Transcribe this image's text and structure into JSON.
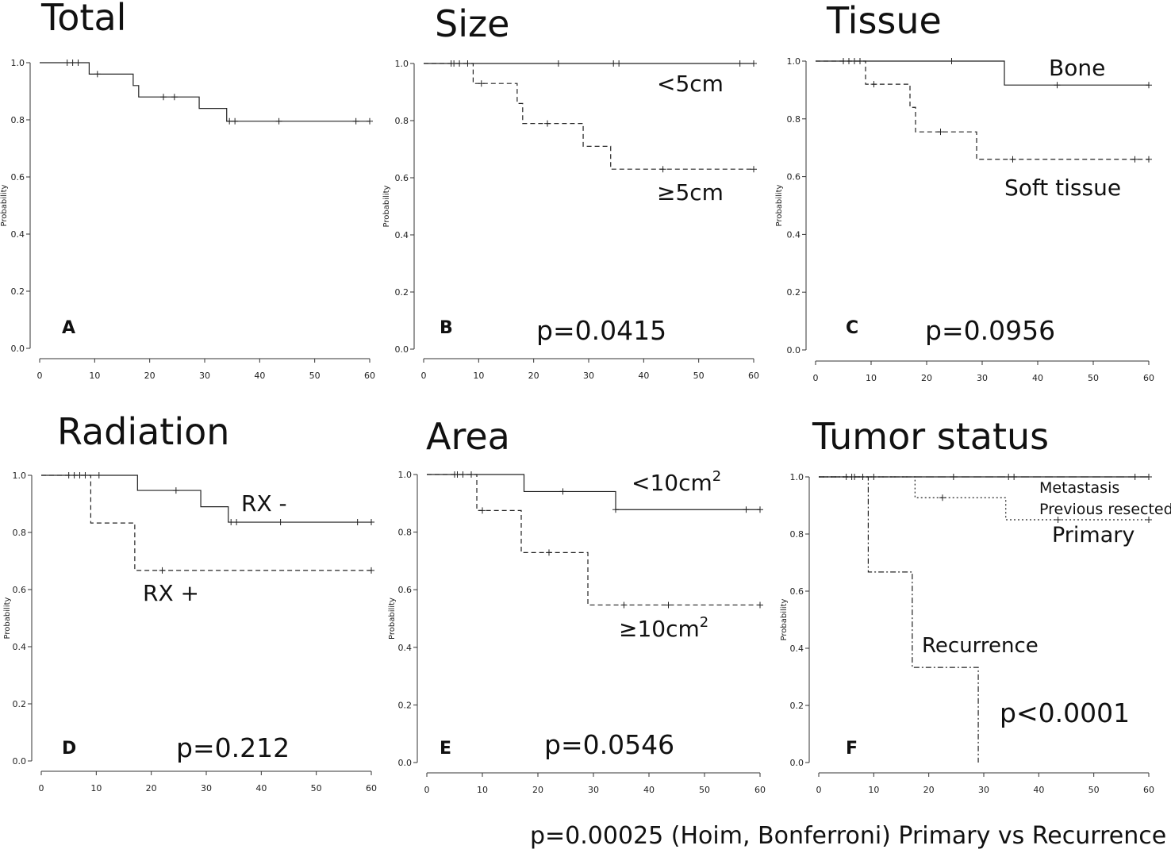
{
  "footnote": "p=0.00025 (Hoim, Bonferroni) Primary vs Recurrence",
  "chart_data": [
    {
      "type": "line",
      "subtype": "kaplan-meier",
      "title": "Total",
      "panel_letter": "A",
      "ylabel": "Probability",
      "xlim": [
        0,
        60
      ],
      "ylim": [
        0,
        1
      ],
      "xticks": [
        "0",
        "10",
        "20",
        "30",
        "40",
        "50",
        "60"
      ],
      "yticks": [
        "0.0",
        "0.2",
        "0.4",
        "0.6",
        "0.8",
        "1.0"
      ],
      "pvalue": "",
      "series": [
        {
          "name": "",
          "dash": "solid",
          "steps": [
            [
              0,
              1.0
            ],
            [
              9,
              0.96
            ],
            [
              17,
              0.92
            ],
            [
              18,
              0.88
            ],
            [
              29,
              0.84
            ],
            [
              34,
              0.795
            ],
            [
              60,
              0.795
            ]
          ],
          "censors": [
            [
              5,
              1.0
            ],
            [
              6,
              1.0
            ],
            [
              7,
              1.0
            ],
            [
              10.5,
              0.96
            ],
            [
              22.5,
              0.88
            ],
            [
              24.5,
              0.88
            ],
            [
              34.5,
              0.795
            ],
            [
              35.5,
              0.795
            ],
            [
              43.5,
              0.795
            ],
            [
              57.5,
              0.795
            ],
            [
              60,
              0.795
            ]
          ]
        }
      ]
    },
    {
      "type": "line",
      "subtype": "kaplan-meier",
      "title": "Size",
      "panel_letter": "B",
      "ylabel": "Probability",
      "xlim": [
        0,
        60
      ],
      "ylim": [
        0,
        1
      ],
      "xticks": [
        "0",
        "10",
        "20",
        "30",
        "40",
        "50",
        "60"
      ],
      "yticks": [
        "0.0",
        "0.2",
        "0.4",
        "0.6",
        "0.8",
        "1.0"
      ],
      "pvalue": "p=0.0415",
      "series": [
        {
          "name": "<5cm",
          "dash": "solid",
          "steps": [
            [
              0,
              1.0
            ],
            [
              60,
              1.0
            ]
          ],
          "censors": [
            [
              5,
              1.0
            ],
            [
              5.5,
              1.0
            ],
            [
              6.5,
              1.0
            ],
            [
              8,
              1.0
            ],
            [
              24.5,
              1.0
            ],
            [
              34.5,
              1.0
            ],
            [
              35.5,
              1.0
            ],
            [
              57.5,
              1.0
            ],
            [
              60,
              1.0
            ]
          ]
        },
        {
          "name": "≥5cm",
          "dash": "dashed",
          "steps": [
            [
              0,
              1.0
            ],
            [
              9,
              0.93
            ],
            [
              17,
              0.86
            ],
            [
              18,
              0.79
            ],
            [
              29,
              0.71
            ],
            [
              34,
              0.63
            ],
            [
              60,
              0.63
            ]
          ],
          "censors": [
            [
              10.5,
              0.93
            ],
            [
              22.5,
              0.79
            ],
            [
              43.5,
              0.63
            ],
            [
              60,
              0.63
            ]
          ]
        }
      ]
    },
    {
      "type": "line",
      "subtype": "kaplan-meier",
      "title": "Tissue",
      "panel_letter": "C",
      "ylabel": "Probability",
      "xlim": [
        0,
        60
      ],
      "ylim": [
        0,
        1
      ],
      "xticks": [
        "0",
        "10",
        "20",
        "30",
        "40",
        "50",
        "60"
      ],
      "yticks": [
        "0.0",
        "0.2",
        "0.4",
        "0.6",
        "0.8",
        "1.0"
      ],
      "pvalue": "p=0.0956",
      "series": [
        {
          "name": "Bone",
          "dash": "solid",
          "steps": [
            [
              0,
              1.0
            ],
            [
              34,
              0.917
            ],
            [
              60,
              0.917
            ]
          ],
          "censors": [
            [
              5,
              1.0
            ],
            [
              6,
              1.0
            ],
            [
              7,
              1.0
            ],
            [
              8,
              1.0
            ],
            [
              24.5,
              1.0
            ],
            [
              43.5,
              0.917
            ],
            [
              60,
              0.917
            ]
          ]
        },
        {
          "name": "Soft tissue",
          "dash": "dashed",
          "steps": [
            [
              0,
              1.0
            ],
            [
              9,
              0.92
            ],
            [
              17,
              0.84
            ],
            [
              18,
              0.755
            ],
            [
              29,
              0.66
            ],
            [
              60,
              0.66
            ]
          ],
          "censors": [
            [
              10.5,
              0.92
            ],
            [
              22.5,
              0.755
            ],
            [
              35.5,
              0.66
            ],
            [
              57.5,
              0.66
            ],
            [
              60,
              0.66
            ]
          ]
        }
      ]
    },
    {
      "type": "line",
      "subtype": "kaplan-meier",
      "title": "Radiation",
      "panel_letter": "D",
      "ylabel": "Probability",
      "xlim": [
        0,
        60
      ],
      "ylim": [
        0,
        1
      ],
      "xticks": [
        "0",
        "10",
        "20",
        "30",
        "40",
        "50",
        "60"
      ],
      "yticks": [
        "0.0",
        "0.2",
        "0.4",
        "0.6",
        "0.8",
        "1.0"
      ],
      "pvalue": "p=0.212",
      "series": [
        {
          "name": "RX -",
          "dash": "solid",
          "steps": [
            [
              0,
              1.0
            ],
            [
              17.5,
              0.947
            ],
            [
              29,
              0.89
            ],
            [
              34,
              0.836
            ],
            [
              60,
              0.836
            ]
          ],
          "censors": [
            [
              5,
              1.0
            ],
            [
              6,
              1.0
            ],
            [
              7,
              1.0
            ],
            [
              8,
              1.0
            ],
            [
              10.5,
              1.0
            ],
            [
              24.5,
              0.947
            ],
            [
              34.5,
              0.836
            ],
            [
              35.5,
              0.836
            ],
            [
              43.5,
              0.836
            ],
            [
              57.5,
              0.836
            ],
            [
              60,
              0.836
            ]
          ]
        },
        {
          "name": "RX +",
          "dash": "dashed",
          "steps": [
            [
              0,
              1.0
            ],
            [
              9,
              0.833
            ],
            [
              17,
              0.667
            ],
            [
              60,
              0.667
            ]
          ],
          "censors": [
            [
              22,
              0.667
            ],
            [
              60,
              0.667
            ]
          ]
        }
      ]
    },
    {
      "type": "line",
      "subtype": "kaplan-meier",
      "title": "Area",
      "panel_letter": "E",
      "ylabel": "Probability",
      "xlim": [
        0,
        60
      ],
      "ylim": [
        0,
        1
      ],
      "xticks": [
        "0",
        "10",
        "20",
        "30",
        "40",
        "50",
        "60"
      ],
      "yticks": [
        "0.0",
        "0.2",
        "0.4",
        "0.6",
        "0.8",
        "1.0"
      ],
      "pvalue": "p=0.0546",
      "series": [
        {
          "name": "<10cm",
          "name_sup": "2",
          "dash": "solid",
          "steps": [
            [
              0,
              1.0
            ],
            [
              17.5,
              0.941
            ],
            [
              34,
              0.878
            ],
            [
              60,
              0.878
            ]
          ],
          "censors": [
            [
              5,
              1.0
            ],
            [
              5.5,
              1.0
            ],
            [
              6.5,
              1.0
            ],
            [
              8,
              1.0
            ],
            [
              24.5,
              0.941
            ],
            [
              34,
              0.878
            ],
            [
              57.5,
              0.878
            ],
            [
              60,
              0.878
            ]
          ]
        },
        {
          "name": "≥10cm",
          "name_sup": "2",
          "dash": "dashed",
          "steps": [
            [
              0,
              1.0
            ],
            [
              9,
              0.875
            ],
            [
              17,
              0.729
            ],
            [
              29,
              0.547
            ],
            [
              60,
              0.547
            ]
          ],
          "censors": [
            [
              10,
              0.875
            ],
            [
              22,
              0.729
            ],
            [
              35.5,
              0.547
            ],
            [
              43.5,
              0.547
            ],
            [
              60,
              0.547
            ]
          ]
        }
      ]
    },
    {
      "type": "line",
      "subtype": "kaplan-meier",
      "title": "Tumor status",
      "panel_letter": "F",
      "ylabel": "Probability",
      "xlim": [
        0,
        60
      ],
      "ylim": [
        0,
        1
      ],
      "xticks": [
        "0",
        "10",
        "20",
        "30",
        "40",
        "50",
        "60"
      ],
      "yticks": [
        "0.0",
        "0.2",
        "0.4",
        "0.6",
        "0.8",
        "1.0"
      ],
      "pvalue": "p<0.0001",
      "series": [
        {
          "name": "Metastasis",
          "dash": "solid",
          "steps": [
            [
              0,
              1.0
            ],
            [
              60,
              1.0
            ]
          ],
          "censors": [
            [
              5,
              1.0
            ],
            [
              6,
              1.0
            ],
            [
              8,
              1.0
            ],
            [
              10,
              1.0
            ],
            [
              24.5,
              1.0
            ],
            [
              34.5,
              1.0
            ],
            [
              35.5,
              1.0
            ],
            [
              57.5,
              1.0
            ],
            [
              60,
              1.0
            ]
          ]
        },
        {
          "name": "Previous resected",
          "dash": "longdash",
          "steps": [
            [
              0,
              1.0
            ],
            [
              60,
              1.0
            ]
          ],
          "censors": [
            [
              6.5,
              1.0
            ]
          ]
        },
        {
          "name": "Primary",
          "dash": "dotted",
          "steps": [
            [
              0,
              1.0
            ],
            [
              17.5,
              0.927
            ],
            [
              34,
              0.85
            ],
            [
              60,
              0.85
            ]
          ],
          "censors": [
            [
              22.5,
              0.927
            ],
            [
              43.5,
              0.85
            ],
            [
              60,
              0.85
            ]
          ]
        },
        {
          "name": "Recurrence",
          "dash": "dashdot",
          "steps": [
            [
              0,
              1.0
            ],
            [
              9,
              0.667
            ],
            [
              17,
              0.333
            ],
            [
              29,
              0.0
            ]
          ],
          "censors": []
        }
      ]
    }
  ]
}
